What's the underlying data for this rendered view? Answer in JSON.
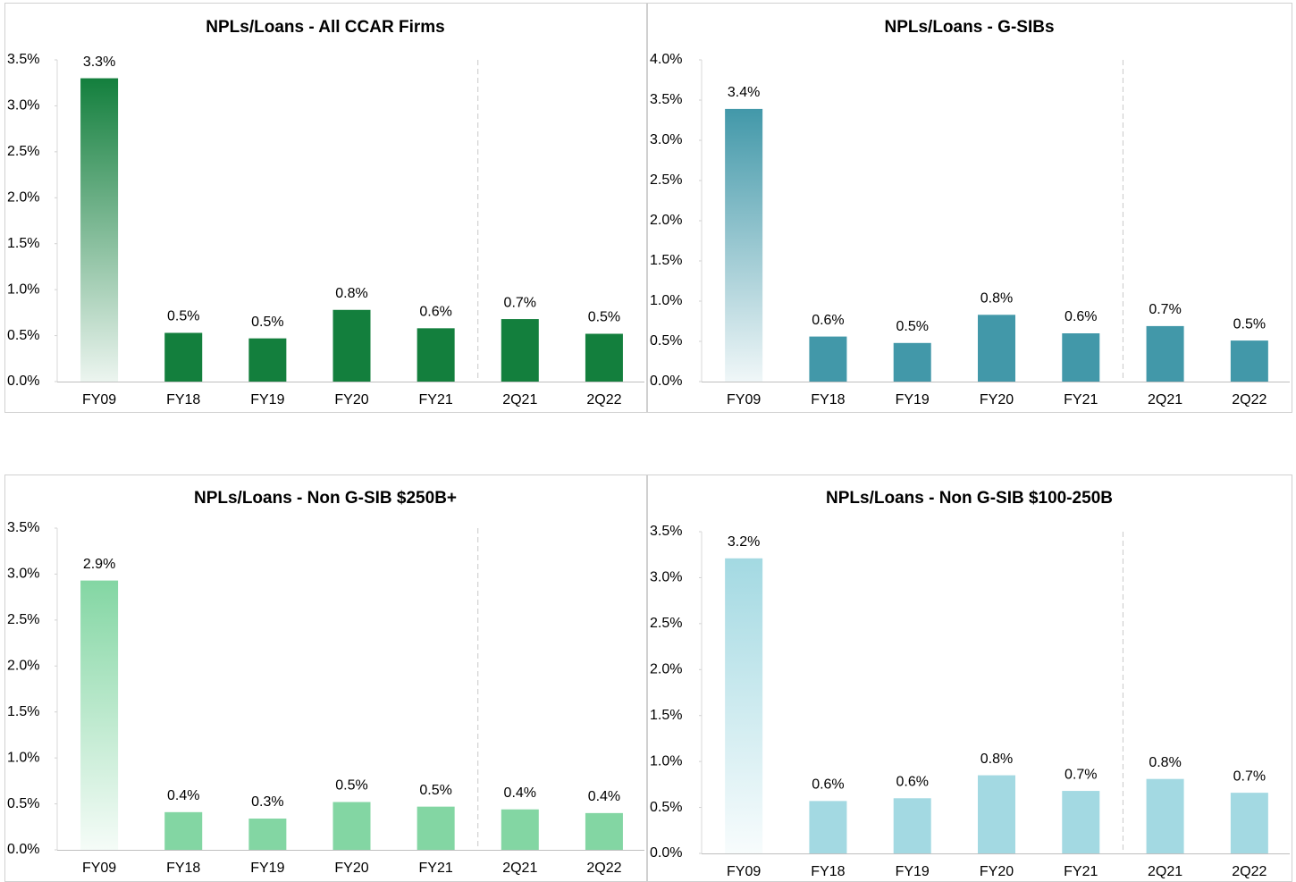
{
  "chart_data": [
    {
      "type": "bar",
      "title": "NPLs/Loans - All CCAR Firms",
      "categories": [
        "FY09",
        "FY18",
        "FY19",
        "FY20",
        "FY21",
        "2Q21",
        "2Q22"
      ],
      "values": [
        3.3,
        0.53,
        0.47,
        0.78,
        0.58,
        0.68,
        0.52
      ],
      "value_labels": [
        "3.3%",
        "0.5%",
        "0.5%",
        "0.8%",
        "0.6%",
        "0.7%",
        "0.5%"
      ],
      "color": "#137f3d",
      "ylim": [
        0,
        3.5
      ],
      "yticks": [
        {
          "value": 0,
          "label": "0.0%"
        },
        {
          "value": 0.5,
          "label": "0.5%"
        },
        {
          "value": 1,
          "label": "1.0%"
        },
        {
          "value": 1.5,
          "label": "1.5%"
        },
        {
          "value": 2,
          "label": "2.0%"
        },
        {
          "value": 2.5,
          "label": "2.5%"
        },
        {
          "value": 3,
          "label": "3.0%"
        },
        {
          "value": 3.5,
          "label": "3.5%"
        }
      ]
    },
    {
      "type": "bar",
      "title": "NPLs/Loans - G-SIBs",
      "categories": [
        "FY09",
        "FY18",
        "FY19",
        "FY20",
        "FY21",
        "2Q21",
        "2Q22"
      ],
      "values": [
        3.39,
        0.56,
        0.48,
        0.83,
        0.6,
        0.69,
        0.51
      ],
      "value_labels": [
        "3.4%",
        "0.6%",
        "0.5%",
        "0.8%",
        "0.6%",
        "0.7%",
        "0.5%"
      ],
      "color": "#4298a9",
      "ylim": [
        0,
        4
      ],
      "yticks": [
        {
          "value": 0,
          "label": "0.0%"
        },
        {
          "value": 0.5,
          "label": "0.5%"
        },
        {
          "value": 1,
          "label": "1.0%"
        },
        {
          "value": 1.5,
          "label": "1.5%"
        },
        {
          "value": 2,
          "label": "2.0%"
        },
        {
          "value": 2.5,
          "label": "2.5%"
        },
        {
          "value": 3,
          "label": "3.0%"
        },
        {
          "value": 3.5,
          "label": "3.5%"
        },
        {
          "value": 4,
          "label": "4.0%"
        }
      ]
    },
    {
      "type": "bar",
      "title": "NPLs/Loans - Non G-SIB $250B+",
      "categories": [
        "FY09",
        "FY18",
        "FY19",
        "FY20",
        "FY21",
        "2Q21",
        "2Q22"
      ],
      "values": [
        2.93,
        0.41,
        0.34,
        0.52,
        0.47,
        0.44,
        0.4
      ],
      "value_labels": [
        "2.9%",
        "0.4%",
        "0.3%",
        "0.5%",
        "0.5%",
        "0.4%",
        "0.4%"
      ],
      "color": "#83d6a3",
      "ylim": [
        0,
        3.5
      ],
      "yticks": [
        {
          "value": 0,
          "label": "0.0%"
        },
        {
          "value": 0.5,
          "label": "0.5%"
        },
        {
          "value": 1,
          "label": "1.0%"
        },
        {
          "value": 1.5,
          "label": "1.5%"
        },
        {
          "value": 2,
          "label": "2.0%"
        },
        {
          "value": 2.5,
          "label": "2.5%"
        },
        {
          "value": 3,
          "label": "3.0%"
        },
        {
          "value": 3.5,
          "label": "3.5%"
        }
      ]
    },
    {
      "type": "bar",
      "title": "NPLs/Loans - Non G-SIB $100-250B",
      "categories": [
        "FY09",
        "FY18",
        "FY19",
        "FY20",
        "FY21",
        "2Q21",
        "2Q22"
      ],
      "values": [
        3.21,
        0.57,
        0.6,
        0.85,
        0.68,
        0.81,
        0.66
      ],
      "value_labels": [
        "3.2%",
        "0.6%",
        "0.6%",
        "0.8%",
        "0.7%",
        "0.8%",
        "0.7%"
      ],
      "color": "#a3d9e2",
      "ylim": [
        0,
        3.5
      ],
      "yticks": [
        {
          "value": 0,
          "label": "0.0%"
        },
        {
          "value": 0.5,
          "label": "0.5%"
        },
        {
          "value": 1,
          "label": "1.0%"
        },
        {
          "value": 1.5,
          "label": "1.5%"
        },
        {
          "value": 2,
          "label": "2.0%"
        },
        {
          "value": 2.5,
          "label": "2.5%"
        },
        {
          "value": 3,
          "label": "3.0%"
        },
        {
          "value": 3.5,
          "label": "3.5%"
        }
      ]
    }
  ]
}
